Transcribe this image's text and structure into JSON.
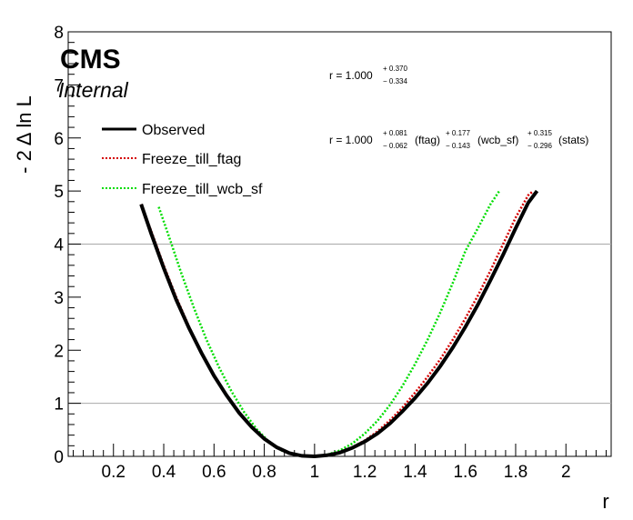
{
  "chart_data": {
    "type": "line",
    "xlabel": "r",
    "ylabel": "- 2 Δ ln L",
    "xlim": [
      0.02,
      2.18
    ],
    "ylim": [
      0,
      8
    ],
    "x_ticks": [
      0.2,
      0.4,
      0.6,
      0.8,
      1,
      1.2,
      1.4,
      1.6,
      1.8,
      2
    ],
    "x_tick_labels": [
      "0.2",
      "0.4",
      "0.6",
      "0.8",
      "1",
      "1.2",
      "1.4",
      "1.6",
      "1.8",
      "2"
    ],
    "y_ticks": [
      0,
      1,
      2,
      3,
      4,
      5,
      6,
      7,
      8
    ],
    "y_tick_labels": [
      "0",
      "1",
      "2",
      "3",
      "4",
      "5",
      "6",
      "7",
      "8"
    ],
    "reference_lines_y": [
      1,
      4
    ],
    "series": [
      {
        "name": "Observed",
        "color": "#000000",
        "style": "solid",
        "x": [
          0.31,
          0.35,
          0.4,
          0.45,
          0.5,
          0.55,
          0.6,
          0.65,
          0.7,
          0.75,
          0.8,
          0.85,
          0.9,
          0.95,
          1.0,
          1.05,
          1.1,
          1.15,
          1.2,
          1.25,
          1.3,
          1.35,
          1.4,
          1.45,
          1.5,
          1.55,
          1.6,
          1.65,
          1.7,
          1.75,
          1.8,
          1.85,
          1.885
        ],
        "y": [
          4.75,
          4.2,
          3.55,
          2.95,
          2.42,
          1.95,
          1.52,
          1.15,
          0.82,
          0.55,
          0.33,
          0.17,
          0.06,
          0.01,
          0.0,
          0.02,
          0.07,
          0.16,
          0.28,
          0.43,
          0.62,
          0.85,
          1.1,
          1.38,
          1.7,
          2.05,
          2.44,
          2.86,
          3.32,
          3.8,
          4.3,
          4.78,
          5.0
        ]
      },
      {
        "name": "Freeze_till_ftag",
        "color": "#d40000",
        "style": "dotted",
        "x": [
          0.31,
          0.35,
          0.4,
          0.45,
          0.5,
          0.55,
          0.6,
          0.65,
          0.7,
          0.75,
          0.8,
          0.85,
          0.9,
          0.95,
          1.0,
          1.05,
          1.1,
          1.15,
          1.2,
          1.25,
          1.3,
          1.35,
          1.4,
          1.45,
          1.5,
          1.55,
          1.6,
          1.65,
          1.7,
          1.75,
          1.8,
          1.85,
          1.87
        ],
        "y": [
          4.75,
          4.25,
          3.6,
          3.0,
          2.45,
          1.96,
          1.52,
          1.14,
          0.81,
          0.54,
          0.32,
          0.16,
          0.05,
          0.01,
          0.0,
          0.02,
          0.08,
          0.17,
          0.3,
          0.47,
          0.68,
          0.92,
          1.2,
          1.5,
          1.83,
          2.2,
          2.6,
          3.03,
          3.5,
          4.0,
          4.5,
          4.92,
          5.0
        ]
      },
      {
        "name": "Freeze_till_wcb_sf",
        "color": "#00dd00",
        "style": "dotted",
        "x": [
          0.38,
          0.42,
          0.47,
          0.52,
          0.57,
          0.62,
          0.67,
          0.72,
          0.77,
          0.82,
          0.87,
          0.92,
          0.97,
          1.0,
          1.05,
          1.1,
          1.15,
          1.2,
          1.25,
          1.3,
          1.35,
          1.4,
          1.45,
          1.5,
          1.55,
          1.6,
          1.65,
          1.7,
          1.735
        ],
        "y": [
          4.7,
          4.15,
          3.45,
          2.8,
          2.2,
          1.68,
          1.22,
          0.83,
          0.51,
          0.27,
          0.11,
          0.03,
          0.0,
          0.0,
          0.03,
          0.11,
          0.24,
          0.43,
          0.67,
          0.97,
          1.33,
          1.74,
          2.2,
          2.71,
          3.27,
          3.87,
          4.3,
          4.75,
          5.0
        ]
      }
    ]
  },
  "branding": {
    "experiment": "CMS",
    "status": "Internal"
  },
  "annotations": {
    "line1_main": "r = 1.000",
    "line1_up": "+ 0.370",
    "line1_down": "− 0.334",
    "line2_main": "r = 1.000",
    "line2_up1": "+ 0.081",
    "line2_down1": "− 0.062",
    "line2_lab1": "(ftag)",
    "line2_up2": "+ 0.177",
    "line2_down2": "− 0.143",
    "line2_lab2": "(wcb_sf)",
    "line2_up3": "+ 0.315",
    "line2_down3": "− 0.296",
    "line2_lab3": "(stats)"
  }
}
